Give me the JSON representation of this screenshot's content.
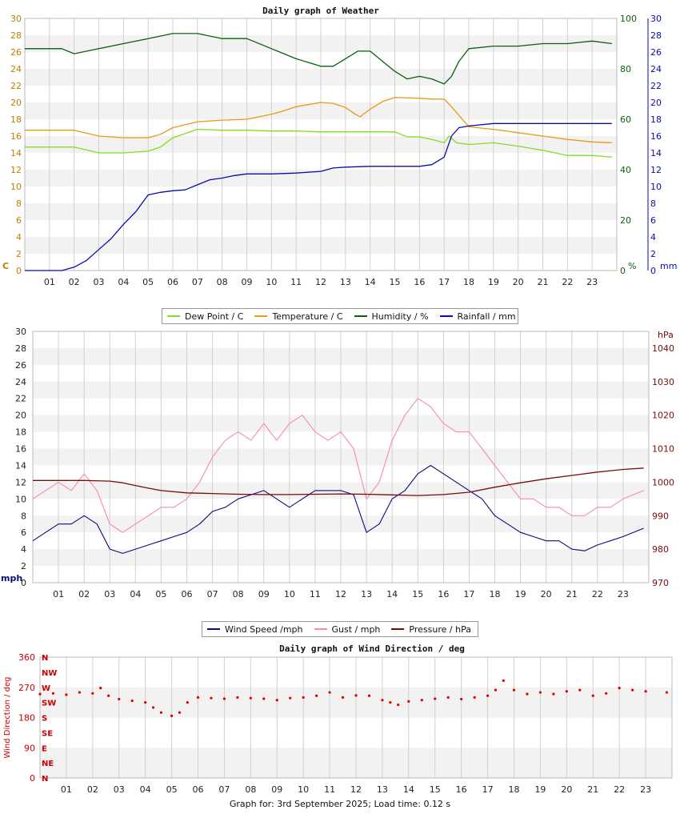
{
  "colors": {
    "dewpoint": "#7ee021",
    "temperature": "#e89b10",
    "humidity": "#0b5f0b",
    "rainfall": "#0b0bb0",
    "windspeed": "#0b0b7a",
    "gust": "#f58aaa",
    "pressure": "#7a0b0b",
    "direction": "#dd0000"
  },
  "footer": "Graph for: 3rd September 2025; Load time: 0.12 s",
  "chart_data": [
    {
      "type": "line",
      "title": "Daily graph of Weather",
      "x_ticks": [
        "01",
        "02",
        "03",
        "04",
        "05",
        "06",
        "07",
        "08",
        "09",
        "10",
        "11",
        "12",
        "13",
        "14",
        "15",
        "16",
        "17",
        "18",
        "19",
        "20",
        "21",
        "22",
        "23"
      ],
      "x_range": [
        0,
        24
      ],
      "y_left_label": "C",
      "y_left_range": [
        0,
        30
      ],
      "y_left_ticks": [
        "0",
        "2",
        "4",
        "6",
        "8",
        "10",
        "12",
        "14",
        "16",
        "18",
        "20",
        "22",
        "24",
        "26",
        "28",
        "30"
      ],
      "y_humidity_label": "%",
      "y_humidity_range": [
        0,
        100
      ],
      "y_humidity_ticks": [
        "0",
        "20",
        "40",
        "60",
        "80",
        "100"
      ],
      "y_rain_label": "mm",
      "y_rain_range": [
        0,
        30
      ],
      "y_rain_ticks": [
        "0",
        "2",
        "4",
        "6",
        "8",
        "10",
        "12",
        "14",
        "16",
        "18",
        "20",
        "22",
        "24",
        "26",
        "28",
        "30"
      ],
      "grid": true,
      "legend": [
        "Dew Point / C",
        "Temperature / C",
        "Humidity / %",
        "Rainfall / mm"
      ],
      "series": [
        {
          "name": "Dew Point / C",
          "x": [
            0,
            1,
            2,
            3,
            4,
            5,
            5.5,
            6,
            7,
            8,
            9,
            10,
            11,
            12,
            13,
            14,
            15,
            15.5,
            16,
            16.5,
            17,
            17.2,
            17.5,
            18,
            19,
            20,
            21,
            22,
            23,
            23.8
          ],
          "values": [
            14.7,
            14.7,
            14.7,
            14.0,
            14.0,
            14.2,
            14.7,
            15.8,
            16.8,
            16.7,
            16.7,
            16.6,
            16.6,
            16.5,
            16.5,
            16.5,
            16.5,
            15.9,
            15.9,
            15.6,
            15.2,
            16.0,
            15.2,
            15.0,
            15.2,
            14.8,
            14.3,
            13.7,
            13.7,
            13.5
          ]
        },
        {
          "name": "Temperature / C",
          "x": [
            0,
            1,
            2,
            3,
            4,
            5,
            5.5,
            6,
            7,
            8,
            9,
            10,
            10.5,
            11,
            12,
            12.5,
            13,
            13.4,
            13.6,
            14,
            14.5,
            15,
            16,
            16.5,
            17,
            17.2,
            17.5,
            18,
            19,
            20,
            21,
            22,
            23,
            23.8
          ],
          "values": [
            16.7,
            16.7,
            16.7,
            16.0,
            15.8,
            15.8,
            16.2,
            17.0,
            17.7,
            17.9,
            18.0,
            18.6,
            19.0,
            19.5,
            20.0,
            19.9,
            19.4,
            18.6,
            18.3,
            19.2,
            20.1,
            20.6,
            20.5,
            20.4,
            20.4,
            19.8,
            18.8,
            17.1,
            16.8,
            16.4,
            16.0,
            15.6,
            15.3,
            15.2
          ]
        },
        {
          "name": "Humidity / %",
          "x": [
            0,
            1,
            1.5,
            2,
            3,
            4,
            5,
            6,
            6.5,
            7,
            8,
            9,
            10,
            10.5,
            11,
            12,
            12.5,
            13,
            13.5,
            14,
            14.5,
            15,
            15.5,
            16,
            16.5,
            17,
            17.3,
            17.6,
            18,
            19,
            20,
            21,
            22,
            23,
            23.8
          ],
          "values": [
            88,
            88,
            88,
            86,
            88,
            90,
            92,
            94,
            94,
            94,
            92,
            92,
            88,
            86,
            84,
            81,
            81,
            84,
            87,
            87,
            83,
            79,
            76,
            77,
            76,
            74,
            77,
            83,
            88,
            89,
            89,
            90,
            90,
            91,
            90
          ]
        },
        {
          "name": "Rainfall / mm",
          "x": [
            0,
            1.5,
            2,
            2.5,
            3,
            3.5,
            4,
            4.5,
            5,
            5.5,
            6,
            6.5,
            7,
            7.5,
            8,
            8.5,
            9,
            10,
            11,
            12,
            12.5,
            13,
            14,
            15,
            16,
            16.5,
            17,
            17.3,
            17.6,
            18,
            19,
            20,
            21,
            22,
            23,
            23.8
          ],
          "values": [
            0,
            0,
            0.4,
            1.2,
            2.5,
            3.8,
            5.5,
            7.0,
            9.0,
            9.3,
            9.5,
            9.6,
            10.2,
            10.8,
            11.0,
            11.3,
            11.5,
            11.5,
            11.6,
            11.8,
            12.2,
            12.3,
            12.4,
            12.4,
            12.4,
            12.6,
            13.5,
            16.0,
            17.0,
            17.2,
            17.5,
            17.5,
            17.5,
            17.5,
            17.5,
            17.5
          ]
        }
      ]
    },
    {
      "type": "line",
      "title": "",
      "x_ticks": [
        "01",
        "02",
        "03",
        "04",
        "05",
        "06",
        "07",
        "08",
        "09",
        "10",
        "11",
        "12",
        "13",
        "14",
        "15",
        "16",
        "17",
        "18",
        "19",
        "20",
        "21",
        "22",
        "23"
      ],
      "x_range": [
        0,
        24
      ],
      "y_left_label": "mph",
      "y_left_range": [
        0,
        30
      ],
      "y_left_ticks": [
        "0",
        "2",
        "4",
        "6",
        "8",
        "10",
        "12",
        "14",
        "16",
        "18",
        "20",
        "22",
        "24",
        "26",
        "28",
        "30"
      ],
      "y_right_label": "hPa",
      "y_right_range": [
        970,
        1045
      ],
      "y_right_ticks": [
        "970",
        "980",
        "990",
        "1000",
        "1010",
        "1020",
        "1030",
        "1040"
      ],
      "grid": true,
      "legend": [
        "Wind Speed /mph",
        "Gust / mph",
        "Pressure / hPa"
      ],
      "series": [
        {
          "name": "Wind Speed /mph",
          "x": [
            0,
            0.5,
            1,
            1.5,
            2,
            2.5,
            3,
            3.5,
            4,
            4.5,
            5,
            5.5,
            6,
            6.5,
            7,
            7.5,
            8,
            8.5,
            9,
            9.5,
            10,
            10.5,
            11,
            11.5,
            12,
            12.5,
            13,
            13.5,
            14,
            14.5,
            15,
            15.5,
            16,
            16.5,
            17,
            17.5,
            18,
            18.5,
            19,
            19.5,
            20,
            20.5,
            21,
            21.5,
            22,
            22.5,
            23,
            23.8
          ],
          "values": [
            5,
            6,
            7,
            7,
            8,
            7,
            4,
            3.5,
            4,
            4.5,
            5,
            5.5,
            6,
            7,
            8.5,
            9,
            10,
            10.5,
            11,
            10,
            9,
            10,
            11,
            11,
            11,
            10.5,
            6,
            7,
            10,
            11,
            13,
            14,
            13,
            12,
            11,
            10,
            8,
            7,
            6,
            5.5,
            5,
            5,
            4,
            3.8,
            4.5,
            5,
            5.5,
            6.5
          ]
        },
        {
          "name": "Gust / mph",
          "x": [
            0,
            0.5,
            1,
            1.5,
            2,
            2.5,
            3,
            3.5,
            4,
            4.5,
            5,
            5.5,
            6,
            6.5,
            7,
            7.5,
            8,
            8.5,
            9,
            9.5,
            10,
            10.5,
            11,
            11.5,
            12,
            12.5,
            13,
            13.5,
            14,
            14.5,
            15,
            15.5,
            16,
            16.5,
            17,
            17.5,
            18,
            18.5,
            19,
            19.5,
            20,
            20.5,
            21,
            21.5,
            22,
            22.5,
            23,
            23.8
          ],
          "values": [
            10,
            11,
            12,
            11,
            13,
            11,
            7,
            6,
            7,
            8,
            9,
            9,
            10,
            12,
            15,
            17,
            18,
            17,
            19,
            17,
            19,
            20,
            18,
            17,
            18,
            16,
            10,
            12,
            17,
            20,
            22,
            21,
            19,
            18,
            18,
            16,
            14,
            12,
            10,
            10,
            9,
            9,
            8,
            8,
            9,
            9,
            10,
            11
          ]
        },
        {
          "name": "Pressure / hPa",
          "x": [
            0,
            1,
            2,
            3,
            3.5,
            4,
            4.5,
            5,
            6,
            7,
            8,
            9,
            10,
            11,
            12,
            13,
            14,
            15,
            16,
            17,
            18,
            19,
            20,
            21,
            22,
            23,
            23.8
          ],
          "values": [
            1000.5,
            1000.5,
            1000.5,
            1000.3,
            999.8,
            999,
            998.2,
            997.5,
            996.8,
            996.6,
            996.4,
            996.3,
            996.3,
            996.4,
            996.5,
            996.4,
            996.2,
            996.0,
            996.3,
            997.0,
            998.5,
            999.8,
            1001.0,
            1002.0,
            1003.0,
            1003.8,
            1004.2
          ]
        }
      ]
    },
    {
      "type": "scatter",
      "title": "Daily graph of Wind Direction / deg",
      "x_ticks": [
        "01",
        "02",
        "03",
        "04",
        "05",
        "06",
        "07",
        "08",
        "09",
        "10",
        "11",
        "12",
        "13",
        "14",
        "15",
        "16",
        "17",
        "18",
        "19",
        "20",
        "21",
        "22",
        "23"
      ],
      "x_range": [
        0,
        24
      ],
      "y_left_label": "Wind Direction / deg",
      "y_left_range": [
        0,
        360
      ],
      "y_left_ticks": [
        "0",
        "90",
        "180",
        "270",
        "360"
      ],
      "compass_labels": [
        "N",
        "NE",
        "E",
        "SE",
        "S",
        "SW",
        "W",
        "NW",
        "N"
      ],
      "grid": true,
      "series": [
        {
          "name": "",
          "x": [
            0,
            0.5,
            1,
            1.5,
            2,
            2.3,
            2.6,
            3,
            3.5,
            4,
            4.3,
            4.6,
            5,
            5.3,
            5.6,
            6,
            6.5,
            7,
            7.5,
            8,
            8.5,
            9,
            9.5,
            10,
            10.5,
            11,
            11.5,
            12,
            12.5,
            13,
            13.3,
            13.6,
            14,
            14.5,
            15,
            15.5,
            16,
            16.5,
            17,
            17.3,
            17.6,
            18,
            18.5,
            19,
            19.5,
            20,
            20.5,
            21,
            21.5,
            22,
            22.5,
            23,
            23.8
          ],
          "values": [
            250,
            252,
            248,
            255,
            252,
            268,
            245,
            235,
            230,
            225,
            210,
            195,
            185,
            195,
            225,
            240,
            238,
            236,
            240,
            238,
            236,
            232,
            238,
            240,
            245,
            255,
            240,
            246,
            245,
            232,
            225,
            218,
            228,
            232,
            236,
            240,
            235,
            240,
            245,
            262,
            290,
            262,
            250,
            255,
            250,
            258,
            262,
            245,
            252,
            268,
            262,
            258,
            255
          ]
        }
      ]
    }
  ]
}
